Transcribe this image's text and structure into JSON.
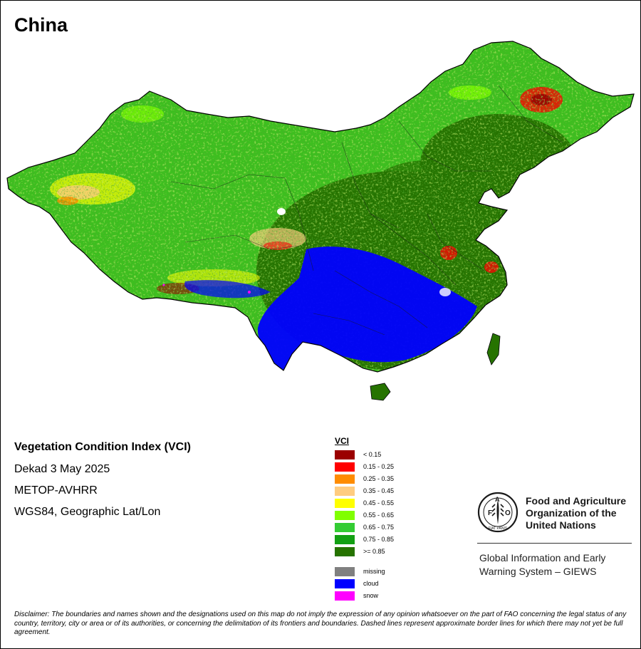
{
  "title": "China",
  "map": {
    "info": {
      "index_name": "Vegetation Condition Index (VCI)",
      "period": "Dekad 3 May 2025",
      "sensor": "METOP-AVHRR",
      "projection": "WGS84, Geographic Lat/Lon"
    },
    "legend": {
      "title": "VCI",
      "classes": [
        {
          "label": "< 0.15",
          "color": "#9b0000"
        },
        {
          "label": "0.15 - 0.25",
          "color": "#ff0000"
        },
        {
          "label": "0.25 - 0.35",
          "color": "#ff8c00"
        },
        {
          "label": "0.35 - 0.45",
          "color": "#ffcc80"
        },
        {
          "label": "0.45 - 0.55",
          "color": "#ffff00"
        },
        {
          "label": "0.55 - 0.65",
          "color": "#80ff00"
        },
        {
          "label": "0.65 - 0.75",
          "color": "#33cc33"
        },
        {
          "label": "0.75 - 0.85",
          "color": "#13a013"
        },
        {
          "label": ">= 0.85",
          "color": "#267300"
        }
      ],
      "special": [
        {
          "label": "missing",
          "color": "#808080"
        },
        {
          "label": "cloud",
          "color": "#0000ff"
        },
        {
          "label": "snow",
          "color": "#ff00ff"
        }
      ]
    }
  },
  "organization": {
    "logo_text": "FAO",
    "logo_motto": "FIAT PANIS",
    "name_lines": [
      "Food and Agriculture",
      "Organization of the",
      "United Nations"
    ],
    "program_lines": [
      "Global Information and Early",
      "Warning System – GIEWS"
    ]
  },
  "disclaimer": "Disclaimer: The boundaries and names shown and the designations used on this map do not imply the expression of any opinion whatsoever on the part of FAO concerning the legal status of any country, territory, city or area or of its authorities, or concerning the delimitation of its frontiers and boundaries. Dashed lines represent approximate border lines for which there may not yet be full agreement."
}
